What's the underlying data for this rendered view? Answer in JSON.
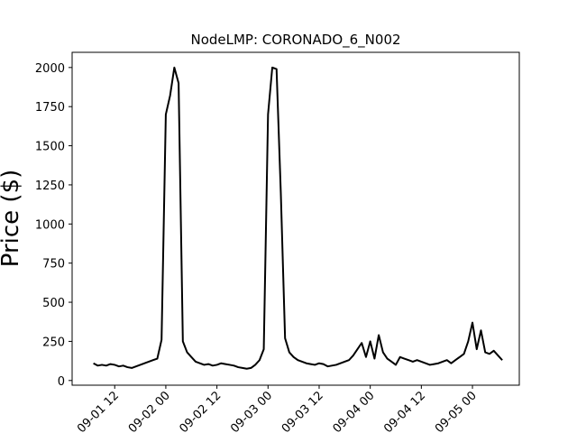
{
  "chart_data": {
    "type": "line",
    "title": "NodeLMP: CORONADO_6_N002",
    "y_label": "Price ($)",
    "x": [
      "09-01 07",
      "09-01 08",
      "09-01 09",
      "09-01 10",
      "09-01 11",
      "09-01 12",
      "09-01 13",
      "09-01 14",
      "09-01 15",
      "09-01 16",
      "09-01 17",
      "09-01 18",
      "09-01 19",
      "09-01 20",
      "09-01 21",
      "09-01 22",
      "09-01 23",
      "09-02 00",
      "09-02 01",
      "09-02 02",
      "09-02 03",
      "09-02 04",
      "09-02 05",
      "09-02 06",
      "09-02 07",
      "09-02 08",
      "09-02 09",
      "09-02 10",
      "09-02 11",
      "09-02 12",
      "09-02 13",
      "09-02 14",
      "09-02 15",
      "09-02 16",
      "09-02 17",
      "09-02 18",
      "09-02 19",
      "09-02 20",
      "09-02 21",
      "09-02 22",
      "09-02 23",
      "09-03 00",
      "09-03 01",
      "09-03 02",
      "09-03 03",
      "09-03 04",
      "09-03 05",
      "09-03 06",
      "09-03 07",
      "09-03 08",
      "09-03 09",
      "09-03 10",
      "09-03 11",
      "09-03 12",
      "09-03 13",
      "09-03 14",
      "09-03 15",
      "09-03 16",
      "09-03 17",
      "09-03 18",
      "09-03 19",
      "09-03 20",
      "09-03 21",
      "09-03 22",
      "09-03 23",
      "09-04 00",
      "09-04 01",
      "09-04 02",
      "09-04 03",
      "09-04 04",
      "09-04 05",
      "09-04 06",
      "09-04 07",
      "09-04 08",
      "09-04 09",
      "09-04 10",
      "09-04 11",
      "09-04 12",
      "09-04 13",
      "09-04 14",
      "09-04 15",
      "09-04 16",
      "09-04 17",
      "09-04 18",
      "09-04 19",
      "09-04 20",
      "09-04 21",
      "09-04 22",
      "09-04 23",
      "09-05 00",
      "09-05 01",
      "09-05 02",
      "09-05 03",
      "09-05 04",
      "09-05 05",
      "09-05 06",
      "09-05 07"
    ],
    "series": [
      {
        "name": "CORONADO_6_N002",
        "color": "#000000",
        "values": [
          110,
          95,
          100,
          95,
          105,
          100,
          90,
          95,
          85,
          80,
          90,
          100,
          110,
          120,
          130,
          140,
          260,
          1700,
          1820,
          2000,
          1900,
          250,
          180,
          150,
          120,
          110,
          100,
          105,
          95,
          100,
          110,
          105,
          100,
          95,
          85,
          80,
          75,
          80,
          100,
          130,
          200,
          1700,
          2000,
          1990,
          1200,
          270,
          180,
          150,
          130,
          120,
          110,
          105,
          100,
          110,
          105,
          90,
          95,
          100,
          110,
          120,
          130,
          160,
          200,
          240,
          150,
          250,
          140,
          290,
          180,
          140,
          120,
          100,
          150,
          140,
          130,
          120,
          130,
          120,
          110,
          100,
          105,
          110,
          120,
          130,
          110,
          130,
          150,
          170,
          250,
          370,
          200,
          320,
          180,
          170,
          190,
          160,
          130
        ]
      }
    ],
    "xlim": [
      "09-01 02",
      "09-05 11"
    ],
    "xticks": [
      "09-01 12",
      "09-02 00",
      "09-02 12",
      "09-03 00",
      "09-03 12",
      "09-04 00",
      "09-04 12",
      "09-05 00"
    ],
    "ylim": [
      -30,
      2097
    ],
    "yticks": [
      0,
      250,
      500,
      750,
      1000,
      1250,
      1500,
      1750,
      2000
    ],
    "grid": false
  }
}
